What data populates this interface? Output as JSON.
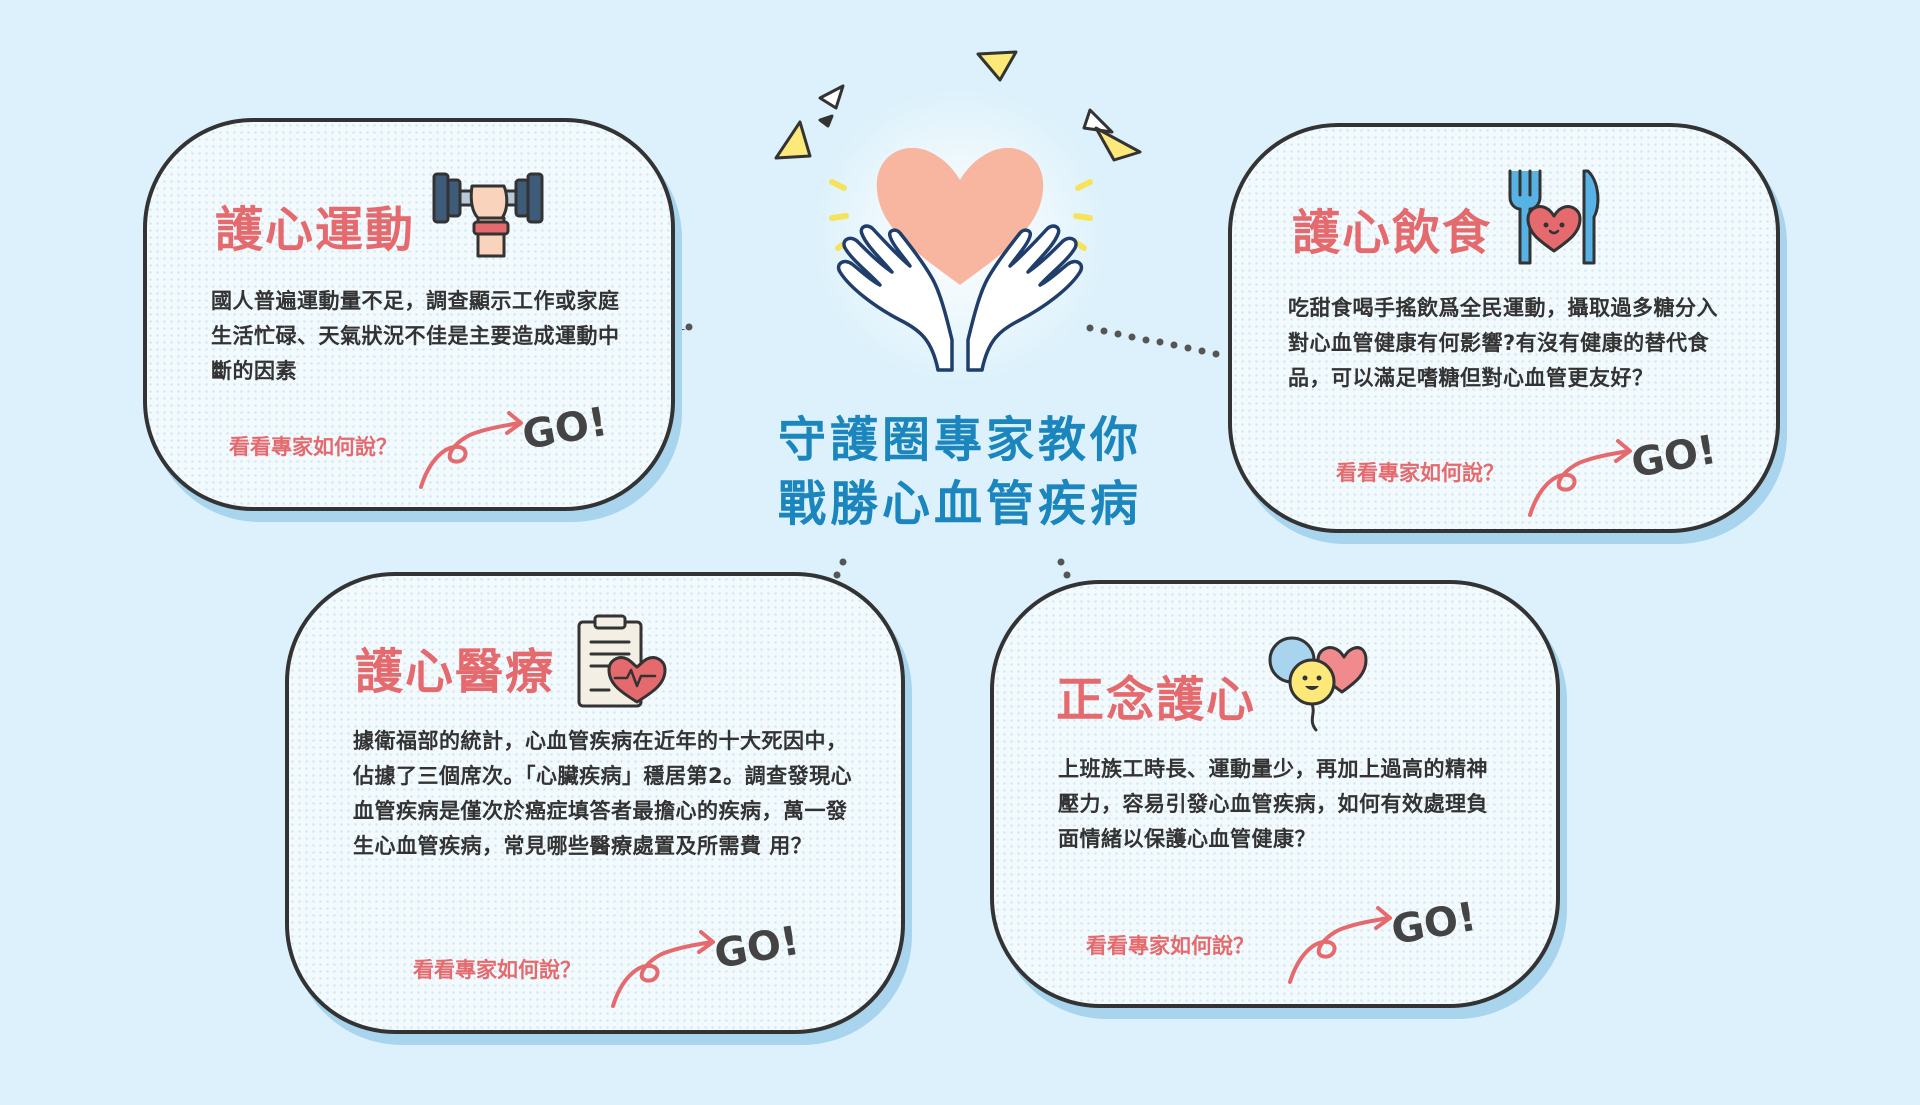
{
  "center": {
    "title_line1": "守護圈專家教你",
    "title_line2": "戰勝心血管疾病"
  },
  "cards": [
    {
      "title": "護心運動",
      "body": "國人普遍運動量不足，調查顯示工作或家庭生活忙碌、天氣狀況不佳是主要造成運動中斷的因素",
      "cta": "看看專家如何說？",
      "go": "GO!",
      "icon": "dumbbell-arm-icon"
    },
    {
      "title": "護心飲食",
      "body": "吃甜食喝手搖飲爲全民運動，攝取過多糖分入對心血管健康有何影響?有沒有健康的替代食品，可以滿足嗜糖但對心血管更友好？",
      "cta": "看看專家如何說？",
      "go": "GO!",
      "icon": "fork-heart-knife-icon"
    },
    {
      "title": "護心醫療",
      "body": "據衛福部的統計，心血管疾病在近年的十大死因中，佔據了三個席次。「心臟疾病」穩居第2。調查發現心血管疾病是僅次於癌症填答者最擔心的疾病，萬一發生心血管疾病，常見哪些醫療處置及所需費 用？",
      "cta": "看看專家如何說？",
      "go": "GO!",
      "icon": "medical-clipboard-heart-icon"
    },
    {
      "title": "正念護心",
      "body": "上班族工時長、運動量少，再加上過高的精神壓力，容易引發心血管疾病，如何有效處理負面情緒以保護心血管健康？",
      "cta": "看看專家如何說？",
      "go": "GO!",
      "icon": "smiley-balloons-icon"
    }
  ],
  "colors": {
    "background": "#dcf1fb",
    "accent_red": "#e56a6d",
    "title_blue": "#1b85bd",
    "text_dark": "#333333",
    "card_shadow": "#a8d4ee"
  }
}
